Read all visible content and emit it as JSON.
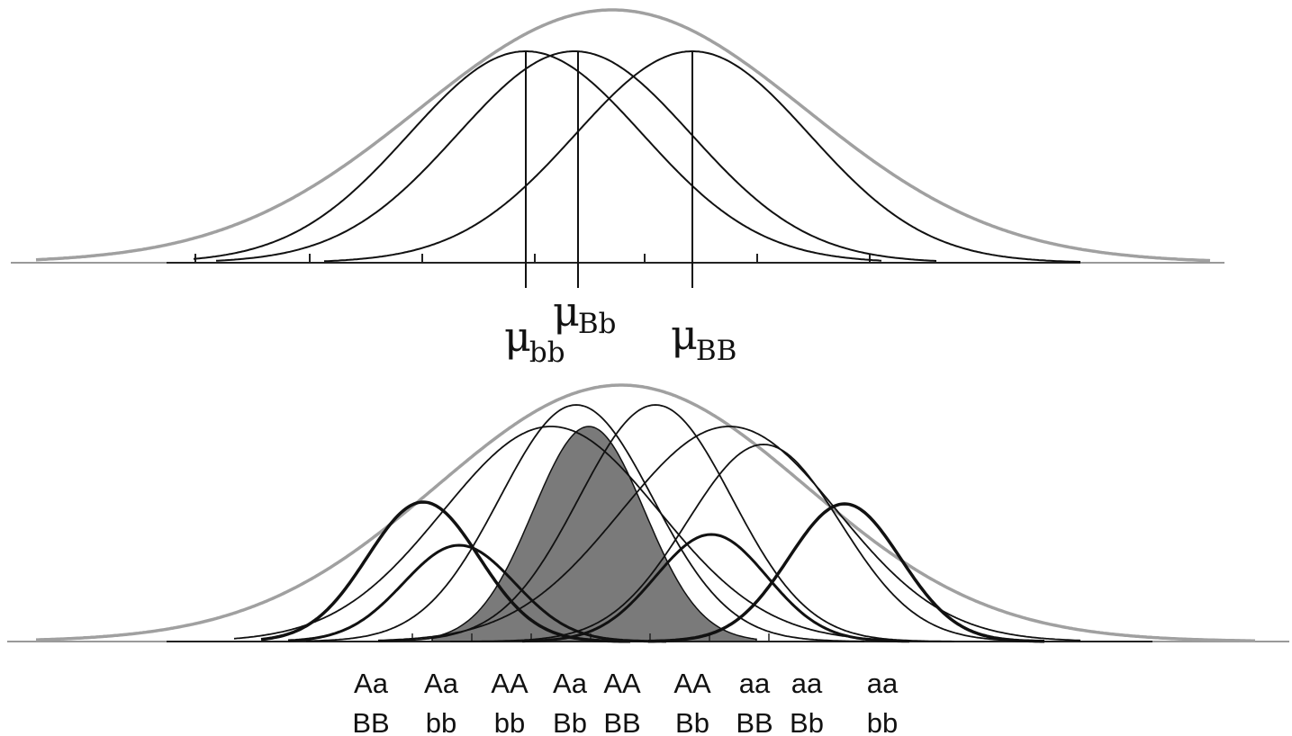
{
  "top_panel": {
    "markers": [
      {
        "id": "bb",
        "symbol": "μ",
        "subscript": "bb"
      },
      {
        "id": "Bb",
        "symbol": "μ",
        "subscript": "Bb"
      },
      {
        "id": "BB",
        "symbol": "μ",
        "subscript": "BB"
      }
    ]
  },
  "bottom_panel": {
    "genotypes": [
      {
        "line1": "Aa",
        "line2": "BB"
      },
      {
        "line1": "Aa",
        "line2": "bb"
      },
      {
        "line1": "AA",
        "line2": "bb"
      },
      {
        "line1": "Aa",
        "line2": "Bb"
      },
      {
        "line1": "AA",
        "line2": "BB"
      },
      {
        "line1": "AA",
        "line2": "Bb"
      },
      {
        "line1": "aa",
        "line2": "BB"
      },
      {
        "line1": "aa",
        "line2": "Bb"
      },
      {
        "line1": "aa",
        "line2": "bb"
      }
    ]
  },
  "colors": {
    "envelope": "#a0a0a0",
    "curve": "#111111",
    "shaded": "#7a7a7a",
    "axis": "#333333"
  }
}
